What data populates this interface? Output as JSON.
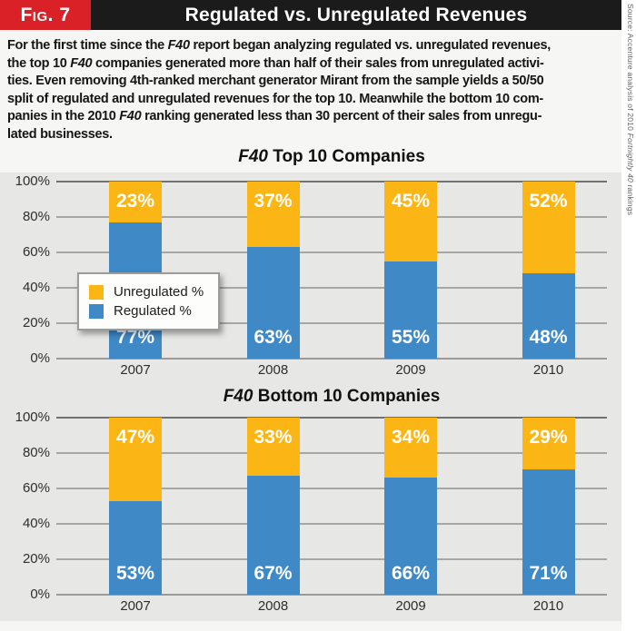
{
  "header": {
    "fig_label": "Fig. 7",
    "title": "Regulated vs. Unregulated Revenues"
  },
  "intro": {
    "lines": [
      [
        {
          "text": "For the first time since the "
        },
        {
          "text": "F40",
          "italic": true
        },
        {
          "text": " report began analyzing regulated vs. unregulated revenues,"
        }
      ],
      [
        {
          "text": "the top 10 "
        },
        {
          "text": "F40",
          "italic": true
        },
        {
          "text": " companies generated more than half of their sales from unregulated activi-"
        }
      ],
      [
        {
          "text": "ties. Even removing 4th-ranked merchant generator Mirant from the sample yields a 50/50"
        }
      ],
      [
        {
          "text": "split of regulated and unregulated revenues for the top 10. Meanwhile the bottom 10 com-"
        }
      ],
      [
        {
          "text": "panies in the 2010 "
        },
        {
          "text": "F40",
          "italic": true
        },
        {
          "text": " ranking generated less than 30 percent of their sales from unregu-"
        }
      ],
      [
        {
          "text": "lated businesses."
        }
      ]
    ]
  },
  "source_note": {
    "segments": [
      {
        "text": "Source: Accenture analysis of 2010 "
      },
      {
        "text": "Fortnightly 40",
        "italic": true
      },
      {
        "text": " rankings"
      }
    ]
  },
  "legend": {
    "items": [
      {
        "label": "Unregulated %",
        "color": "#fbb615"
      },
      {
        "label": "Regulated %",
        "color": "#3f89c6"
      }
    ]
  },
  "colors": {
    "unregulated": "#fbb615",
    "regulated": "#3f89c6",
    "fig_badge_red": "#da2128",
    "header_black": "#1b1b1b",
    "plot_background": "#e7e7e5",
    "gridline": "#a6a6a4",
    "gridline_top": "#707173",
    "gridline_zero": "#9a9a98",
    "bar_label_text": "#ffffff"
  },
  "chart_data": [
    {
      "type": "bar",
      "stacked": true,
      "title": "F40 Top 10 Companies",
      "title_segments": [
        {
          "text": "F40",
          "italic": true
        },
        {
          "text": " Top 10 Companies"
        }
      ],
      "categories": [
        "2007",
        "2008",
        "2009",
        "2010"
      ],
      "series": [
        {
          "name": "Regulated %",
          "color": "#3f89c6",
          "values": [
            77,
            63,
            55,
            48
          ]
        },
        {
          "name": "Unregulated %",
          "color": "#fbb615",
          "values": [
            23,
            37,
            45,
            52
          ]
        }
      ],
      "ylim": [
        0,
        100
      ],
      "ytick_labels": [
        "100%",
        "80%",
        "60%",
        "40%",
        "20%",
        "0%"
      ],
      "grid": true,
      "grid_interval_percent": 20,
      "legend_position": "inside-left",
      "value_label_format": "percent"
    },
    {
      "type": "bar",
      "stacked": true,
      "title": "F40 Bottom 10 Companies",
      "title_segments": [
        {
          "text": "F40",
          "italic": true
        },
        {
          "text": " Bottom 10 Companies"
        }
      ],
      "categories": [
        "2007",
        "2008",
        "2009",
        "2010"
      ],
      "series": [
        {
          "name": "Regulated %",
          "color": "#3f89c6",
          "values": [
            53,
            67,
            66,
            71
          ]
        },
        {
          "name": "Unregulated %",
          "color": "#fbb615",
          "values": [
            47,
            33,
            34,
            29
          ]
        }
      ],
      "ylim": [
        0,
        100
      ],
      "ytick_labels": [
        "100%",
        "80%",
        "60%",
        "40%",
        "20%",
        "0%"
      ],
      "grid": true,
      "grid_interval_percent": 20,
      "legend_position": "none",
      "value_label_format": "percent"
    }
  ]
}
